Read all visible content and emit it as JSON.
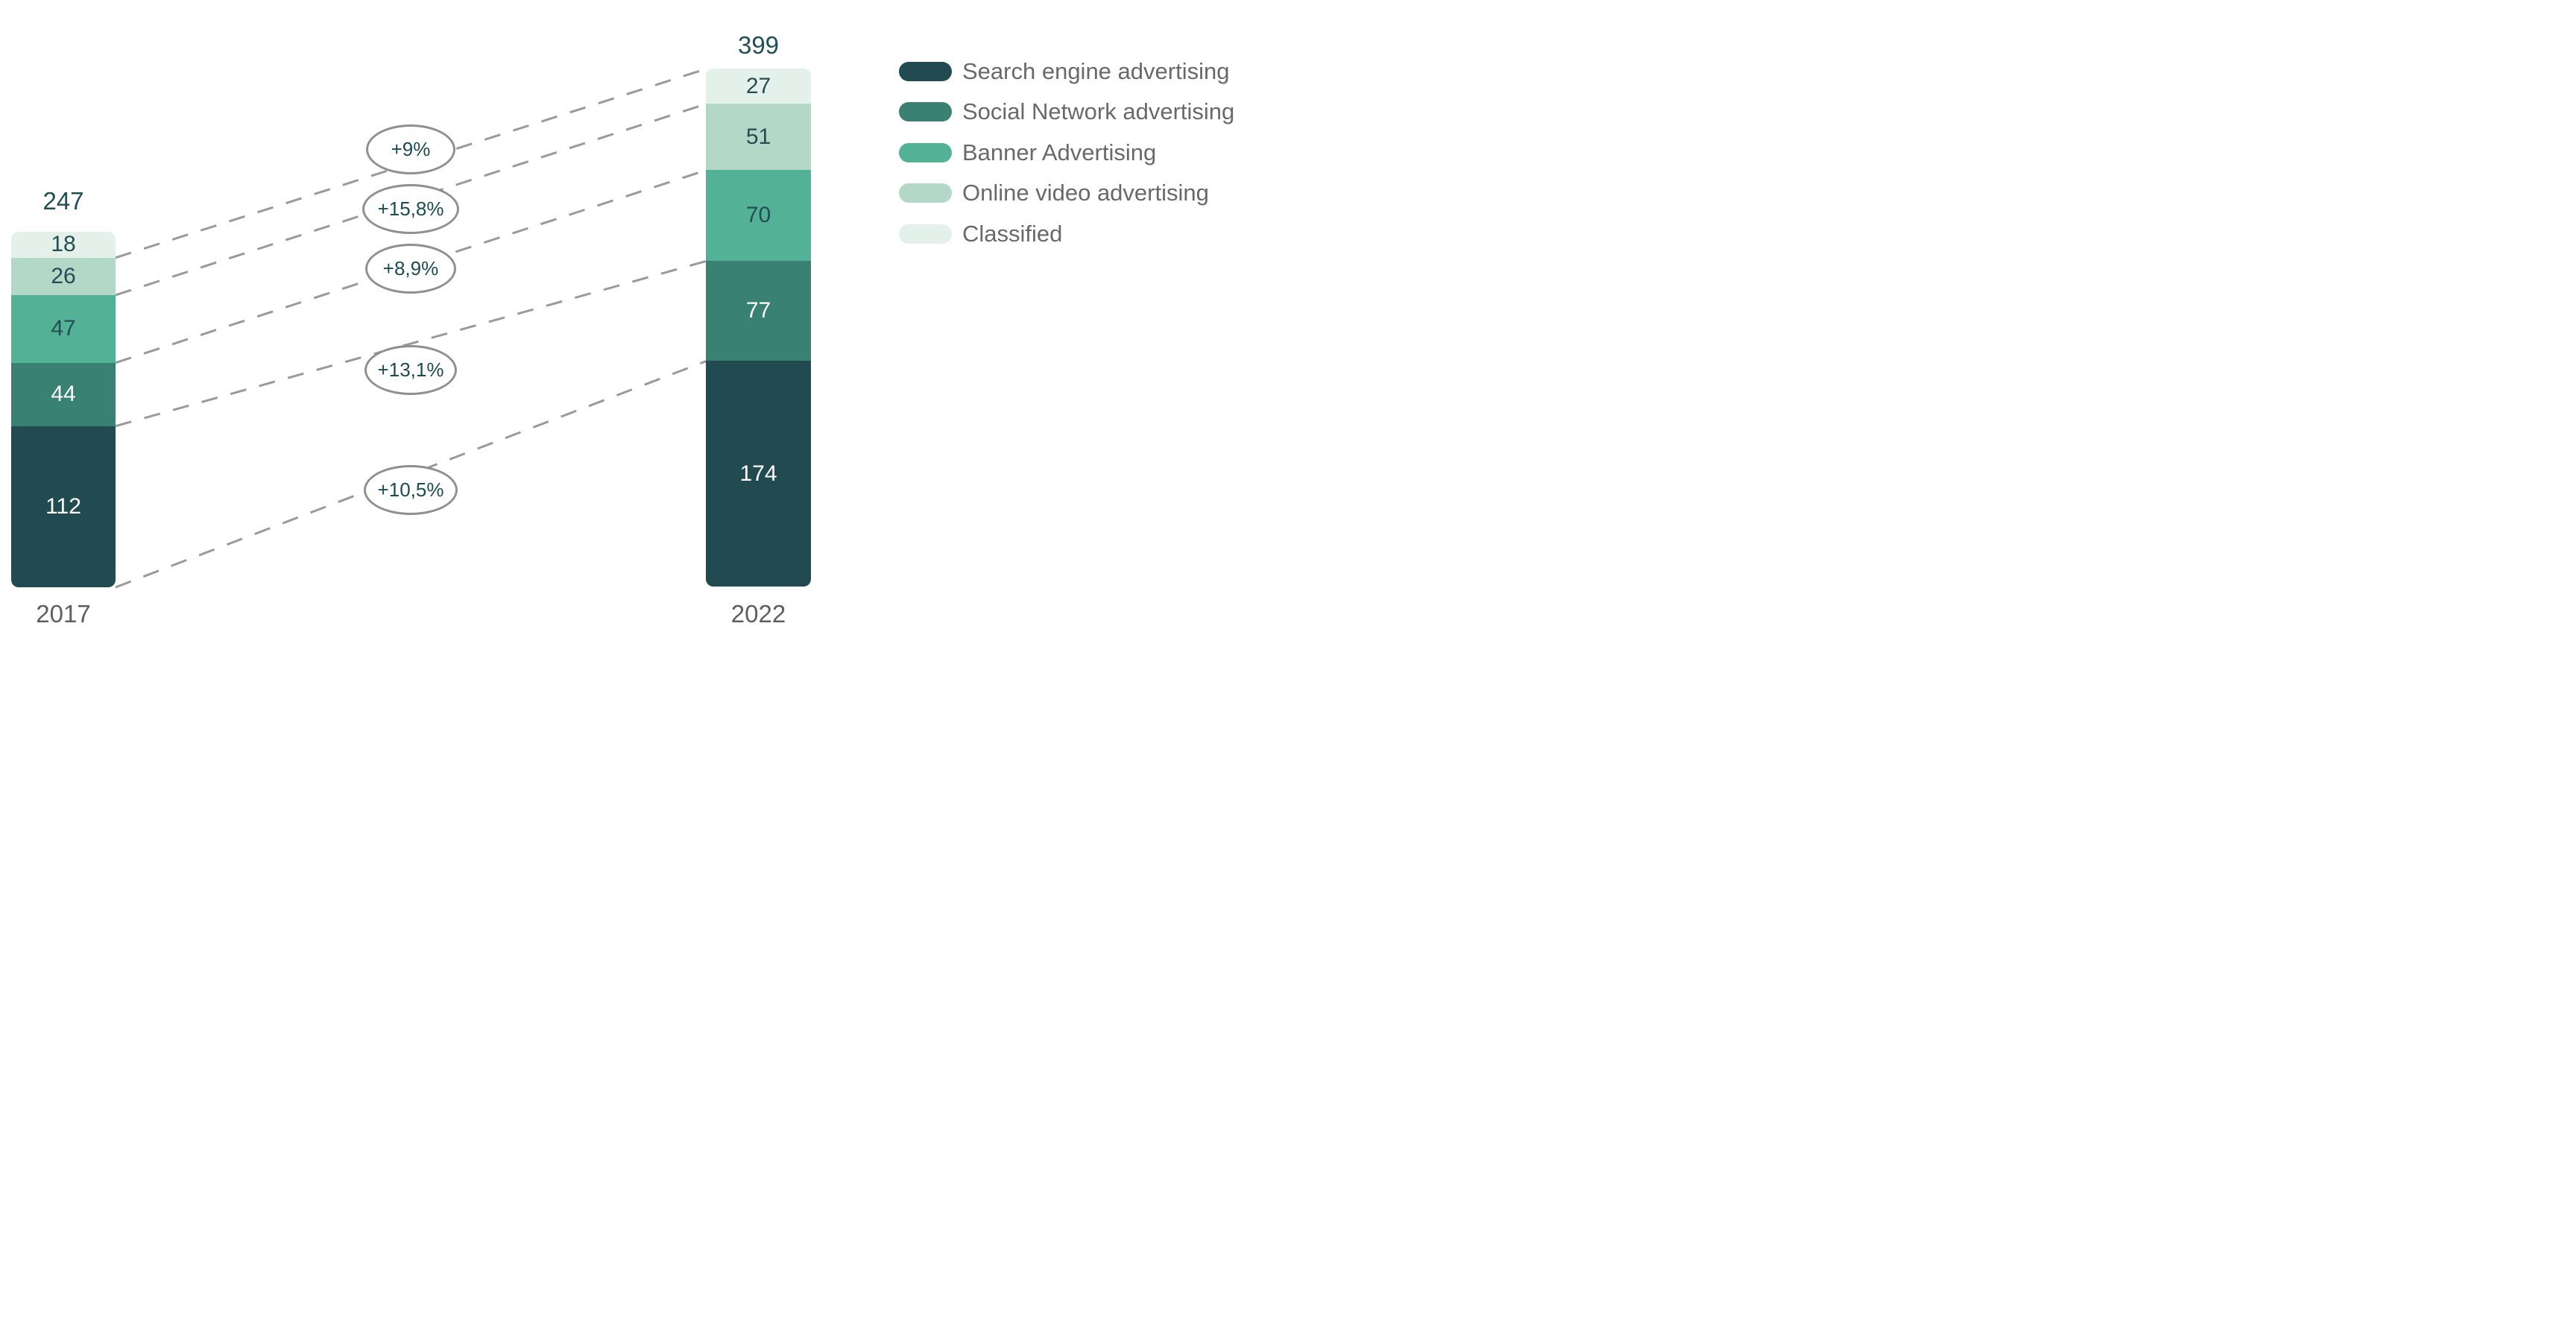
{
  "chart_data": {
    "type": "bar",
    "subtype": "stacked-column-comparison",
    "categories": [
      "2017",
      "2022"
    ],
    "totals": [
      247,
      399
    ],
    "series": [
      {
        "name": "Search engine advertising",
        "values": [
          112,
          174
        ],
        "growth": "+10,5%",
        "color": "#214b51",
        "label_color": "#ffffff"
      },
      {
        "name": "Social Network advertising",
        "values": [
          44,
          77
        ],
        "growth": "+13,1%",
        "color": "#398173",
        "label_color": "#ffffff"
      },
      {
        "name": "Banner Advertising",
        "values": [
          47,
          70
        ],
        "growth": "+8,9%",
        "color": "#53b295",
        "label_color": "#244e54"
      },
      {
        "name": "Online video advertising",
        "values": [
          26,
          51
        ],
        "growth": "+15,8%",
        "color": "#b3d8c8",
        "label_color": "#244e54"
      },
      {
        "name": "Classified",
        "values": [
          18,
          27
        ],
        "growth": "+9%",
        "color": "#e4f1ea",
        "label_color": "#244e54"
      }
    ],
    "legend_position": "right",
    "grid": false,
    "connector_line_color": "#9a9a9a",
    "total_label_color": "#234e54",
    "axis_label_color": "#5f5f5f",
    "legend_text_color": "#696969"
  }
}
